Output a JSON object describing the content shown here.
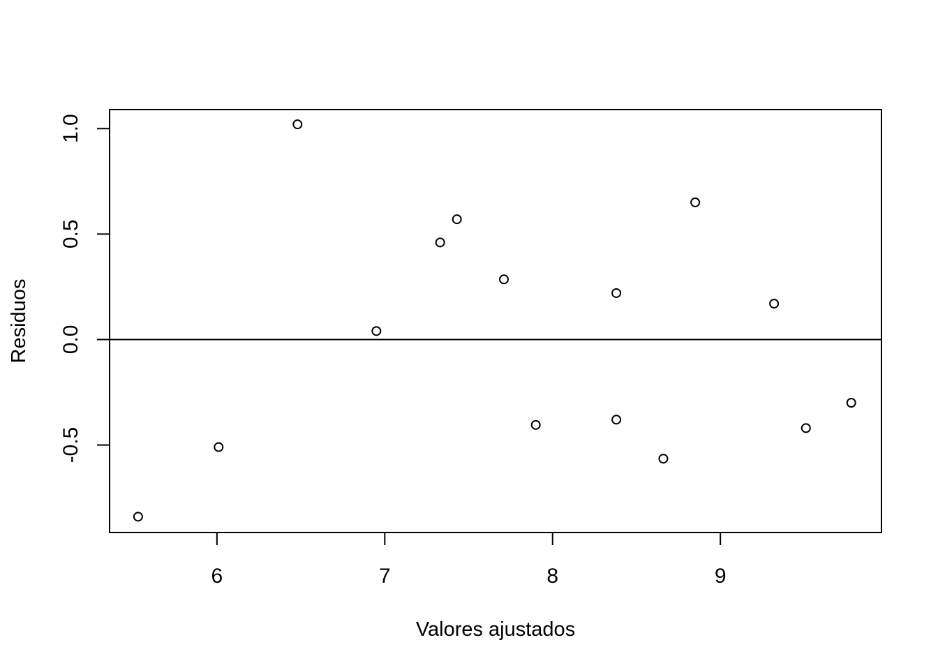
{
  "chart_data": {
    "type": "scatter",
    "title": "",
    "xlabel": "Valores ajustados",
    "ylabel": "Residuos",
    "xlim": [
      5.36,
      9.96
    ],
    "ylim": [
      -0.915,
      1.09
    ],
    "x_ticks": [
      6,
      7,
      8,
      9
    ],
    "x_tick_labels": [
      "6",
      "7",
      "8",
      "9"
    ],
    "y_ticks": [
      -0.5,
      0.0,
      0.5,
      1.0
    ],
    "y_tick_labels": [
      "-0.5",
      "0.0",
      "0.5",
      "1.0"
    ],
    "reference_line_y": 0,
    "grid": false,
    "marker": "open-circle",
    "points": [
      {
        "x": 5.53,
        "y": -0.84
      },
      {
        "x": 6.01,
        "y": -0.51
      },
      {
        "x": 6.48,
        "y": 1.02
      },
      {
        "x": 6.95,
        "y": 0.04
      },
      {
        "x": 7.33,
        "y": 0.46
      },
      {
        "x": 7.43,
        "y": 0.57
      },
      {
        "x": 7.71,
        "y": 0.285
      },
      {
        "x": 7.9,
        "y": -0.405
      },
      {
        "x": 8.38,
        "y": 0.22
      },
      {
        "x": 8.38,
        "y": -0.38
      },
      {
        "x": 8.66,
        "y": -0.565
      },
      {
        "x": 8.85,
        "y": 0.65
      },
      {
        "x": 9.32,
        "y": 0.17
      },
      {
        "x": 9.51,
        "y": -0.42
      },
      {
        "x": 9.78,
        "y": -0.3
      }
    ]
  }
}
